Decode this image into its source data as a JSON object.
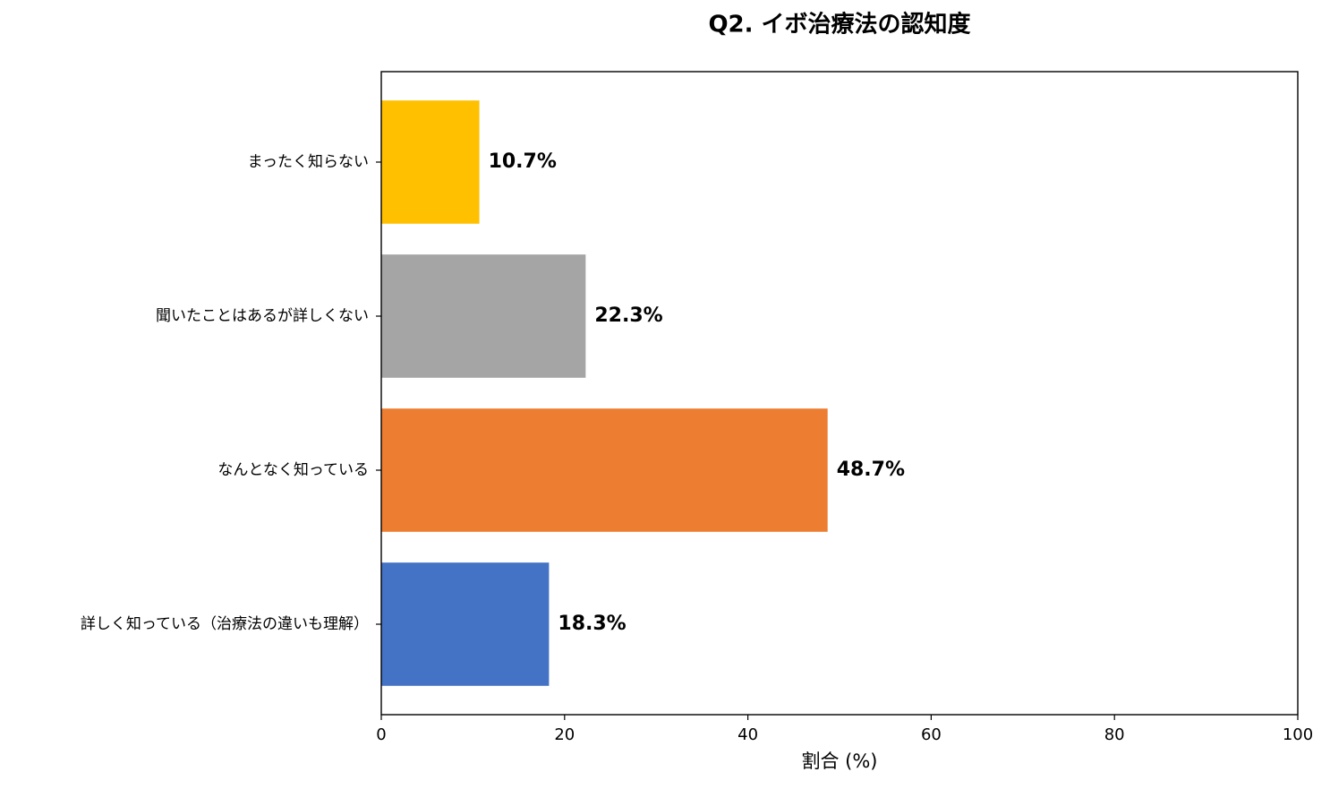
{
  "chart_data": {
    "type": "barh",
    "title": "Q2. イボ治療法の認知度",
    "xlabel": "割合 (%)",
    "categories": [
      "まったく知らない",
      "聞いたことはあるが詳しくない",
      "なんとなく知っている",
      "詳しく知っている（治療法の違いも理解）"
    ],
    "values": [
      10.7,
      22.3,
      48.7,
      18.3
    ],
    "value_labels": [
      "10.7%",
      "22.3%",
      "48.7%",
      "18.3%"
    ],
    "colors": [
      "#ffc000",
      "#a5a5a5",
      "#ed7d31",
      "#4472c4"
    ],
    "xlim": [
      0,
      100
    ],
    "xticks": [
      0,
      20,
      40,
      60,
      80,
      100
    ],
    "grid": false
  }
}
